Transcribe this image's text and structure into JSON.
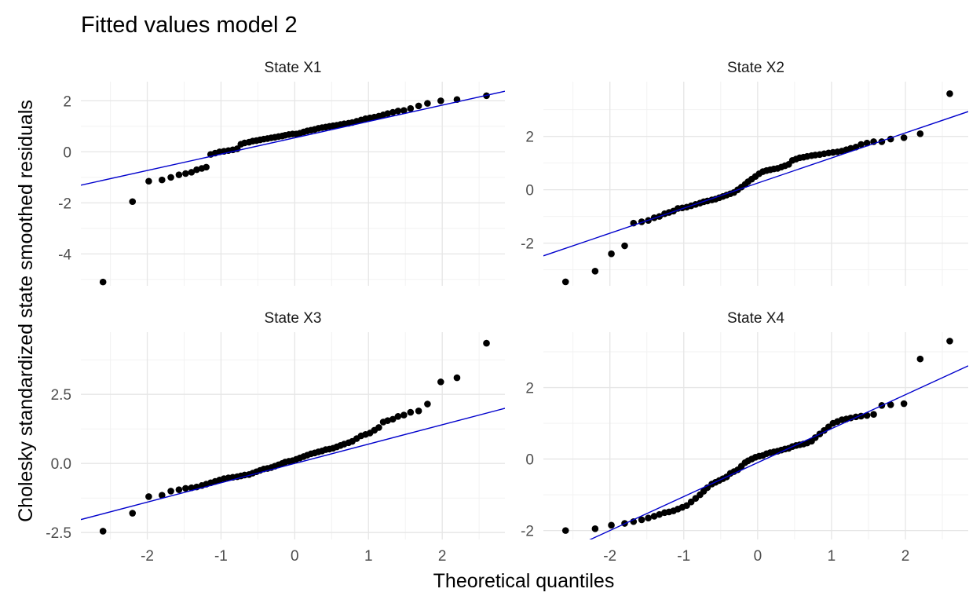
{
  "title": "Fitted values model 2",
  "xlabel": "Theoretical quantiles",
  "ylabel": "Cholesky standardized state smoothed residuals",
  "colors": {
    "points": "#000000",
    "line": "#0000cc",
    "grid_major": "#e6e6e6",
    "grid_minor": "#f2f2f2",
    "tick_text": "#4d4d4d",
    "text": "#000000"
  },
  "chart_data": [
    {
      "type": "scatter",
      "panel": "State X1",
      "grid": true,
      "xlim": [
        -2.9,
        2.85
      ],
      "ylim": [
        -5.25,
        2.75
      ],
      "x_ticks": [
        -2,
        -1,
        0,
        1,
        2
      ],
      "x_tick_labels": [
        "-2",
        "-1",
        "0",
        "1",
        "2"
      ],
      "y_ticks": [
        2,
        0,
        -2,
        -4
      ],
      "y_tick_labels": [
        "2",
        "0",
        "-2",
        "-4"
      ],
      "reference_line": {
        "slope": 0.64,
        "intercept": 0.55
      },
      "points": {
        "x": [
          -2.6,
          -2.2,
          -1.98,
          -1.8,
          -1.68,
          -1.57,
          -1.48,
          -1.4,
          -1.33,
          -1.26,
          -1.2,
          -1.14,
          -1.08,
          -1.02,
          -0.96,
          -0.9,
          -0.84,
          -0.78,
          -0.73,
          -0.68,
          -0.62,
          -0.57,
          -0.52,
          -0.47,
          -0.42,
          -0.37,
          -0.32,
          -0.27,
          -0.22,
          -0.17,
          -0.13,
          -0.08,
          -0.03,
          0.02,
          0.07,
          0.12,
          0.17,
          0.22,
          0.27,
          0.32,
          0.37,
          0.42,
          0.47,
          0.52,
          0.57,
          0.62,
          0.67,
          0.73,
          0.78,
          0.84,
          0.9,
          0.96,
          1.02,
          1.08,
          1.14,
          1.2,
          1.26,
          1.33,
          1.4,
          1.48,
          1.57,
          1.68,
          1.8,
          1.98,
          2.2,
          2.6
        ],
        "y": [
          -5.1,
          -1.95,
          -1.15,
          -1.1,
          -1.0,
          -0.9,
          -0.85,
          -0.8,
          -0.7,
          -0.65,
          -0.6,
          -0.1,
          -0.05,
          0.0,
          0.02,
          0.05,
          0.08,
          0.12,
          0.3,
          0.35,
          0.38,
          0.42,
          0.44,
          0.47,
          0.5,
          0.52,
          0.55,
          0.57,
          0.6,
          0.62,
          0.65,
          0.68,
          0.7,
          0.7,
          0.73,
          0.78,
          0.82,
          0.85,
          0.88,
          0.92,
          0.95,
          0.97,
          1.0,
          1.02,
          1.04,
          1.07,
          1.1,
          1.12,
          1.15,
          1.2,
          1.25,
          1.3,
          1.33,
          1.36,
          1.4,
          1.45,
          1.5,
          1.55,
          1.6,
          1.62,
          1.7,
          1.8,
          1.9,
          2.0,
          2.05,
          2.2
        ]
      }
    },
    {
      "type": "scatter",
      "panel": "State X2",
      "grid": true,
      "xlim": [
        -2.9,
        2.85
      ],
      "ylim": [
        -3.6,
        4.05
      ],
      "x_ticks": [
        -2,
        -1,
        0,
        1,
        2
      ],
      "x_tick_labels": [
        "-2",
        "-1",
        "0",
        "1",
        "2"
      ],
      "y_ticks": [
        2,
        0,
        -2
      ],
      "y_tick_labels": [
        "2",
        "0",
        "-2"
      ],
      "reference_line": {
        "slope": 0.94,
        "intercept": 0.25
      },
      "points": {
        "x": [
          -2.6,
          -2.2,
          -1.98,
          -1.8,
          -1.68,
          -1.57,
          -1.48,
          -1.4,
          -1.33,
          -1.26,
          -1.2,
          -1.14,
          -1.08,
          -1.02,
          -0.96,
          -0.9,
          -0.84,
          -0.78,
          -0.73,
          -0.68,
          -0.62,
          -0.57,
          -0.52,
          -0.47,
          -0.42,
          -0.37,
          -0.32,
          -0.27,
          -0.22,
          -0.17,
          -0.13,
          -0.08,
          -0.03,
          0.02,
          0.07,
          0.12,
          0.17,
          0.22,
          0.27,
          0.32,
          0.37,
          0.42,
          0.47,
          0.52,
          0.57,
          0.62,
          0.67,
          0.73,
          0.78,
          0.84,
          0.9,
          0.96,
          1.02,
          1.08,
          1.14,
          1.2,
          1.26,
          1.33,
          1.4,
          1.48,
          1.57,
          1.68,
          1.8,
          1.98,
          2.2,
          2.6
        ],
        "y": [
          -3.45,
          -3.05,
          -2.4,
          -2.1,
          -1.25,
          -1.2,
          -1.15,
          -1.05,
          -1.0,
          -0.9,
          -0.85,
          -0.8,
          -0.7,
          -0.68,
          -0.65,
          -0.6,
          -0.55,
          -0.5,
          -0.45,
          -0.42,
          -0.38,
          -0.35,
          -0.3,
          -0.25,
          -0.2,
          -0.15,
          -0.1,
          0.0,
          0.1,
          0.2,
          0.3,
          0.4,
          0.5,
          0.6,
          0.68,
          0.72,
          0.75,
          0.78,
          0.8,
          0.85,
          0.9,
          0.95,
          1.1,
          1.15,
          1.2,
          1.22,
          1.25,
          1.28,
          1.3,
          1.32,
          1.35,
          1.38,
          1.4,
          1.42,
          1.45,
          1.5,
          1.55,
          1.6,
          1.7,
          1.75,
          1.8,
          1.8,
          1.9,
          1.95,
          2.1,
          3.6
        ]
      }
    },
    {
      "type": "scatter",
      "panel": "State X3",
      "grid": true,
      "xlim": [
        -2.9,
        2.85
      ],
      "ylim": [
        -2.75,
        4.75
      ],
      "x_ticks": [
        -2,
        -1,
        0,
        1,
        2
      ],
      "x_tick_labels": [
        "-2",
        "-1",
        "0",
        "1",
        "2"
      ],
      "y_ticks": [
        2.5,
        0.0,
        -2.5
      ],
      "y_tick_labels": [
        "2.5",
        "0.0",
        "-2.5"
      ],
      "reference_line": {
        "slope": 0.7,
        "intercept": 0.0
      },
      "points": {
        "x": [
          -2.6,
          -2.2,
          -1.98,
          -1.8,
          -1.68,
          -1.57,
          -1.48,
          -1.4,
          -1.33,
          -1.26,
          -1.2,
          -1.14,
          -1.08,
          -1.02,
          -0.96,
          -0.9,
          -0.84,
          -0.78,
          -0.73,
          -0.68,
          -0.62,
          -0.57,
          -0.52,
          -0.47,
          -0.42,
          -0.37,
          -0.32,
          -0.27,
          -0.22,
          -0.17,
          -0.13,
          -0.08,
          -0.03,
          0.02,
          0.07,
          0.12,
          0.17,
          0.22,
          0.27,
          0.32,
          0.37,
          0.42,
          0.47,
          0.52,
          0.57,
          0.62,
          0.67,
          0.73,
          0.78,
          0.84,
          0.9,
          0.96,
          1.02,
          1.08,
          1.14,
          1.2,
          1.26,
          1.33,
          1.4,
          1.48,
          1.57,
          1.68,
          1.8,
          1.98,
          2.2,
          2.6
        ],
        "y": [
          -2.45,
          -1.8,
          -1.2,
          -1.15,
          -1.0,
          -0.95,
          -0.9,
          -0.88,
          -0.85,
          -0.8,
          -0.75,
          -0.7,
          -0.65,
          -0.6,
          -0.55,
          -0.52,
          -0.5,
          -0.48,
          -0.45,
          -0.42,
          -0.4,
          -0.35,
          -0.3,
          -0.25,
          -0.2,
          -0.18,
          -0.15,
          -0.1,
          -0.05,
          0.0,
          0.05,
          0.08,
          0.1,
          0.15,
          0.2,
          0.25,
          0.3,
          0.35,
          0.38,
          0.42,
          0.45,
          0.5,
          0.52,
          0.55,
          0.6,
          0.65,
          0.7,
          0.75,
          0.8,
          0.9,
          1.0,
          1.05,
          1.1,
          1.2,
          1.3,
          1.5,
          1.55,
          1.6,
          1.7,
          1.75,
          1.85,
          1.9,
          2.15,
          2.95,
          3.1,
          4.35
        ]
      }
    },
    {
      "type": "scatter",
      "panel": "State X4",
      "grid": true,
      "xlim": [
        -2.9,
        2.85
      ],
      "ylim": [
        -2.25,
        3.55
      ],
      "x_ticks": [
        -2,
        -1,
        0,
        1,
        2
      ],
      "x_tick_labels": [
        "-2",
        "-1",
        "0",
        "1",
        "2"
      ],
      "y_ticks": [
        2,
        0,
        -2
      ],
      "y_tick_labels": [
        "2",
        "0",
        "-2"
      ],
      "reference_line": {
        "slope": 0.95,
        "intercept": -0.1
      },
      "points": {
        "x": [
          -2.6,
          -2.2,
          -1.98,
          -1.8,
          -1.68,
          -1.57,
          -1.48,
          -1.4,
          -1.33,
          -1.26,
          -1.2,
          -1.14,
          -1.08,
          -1.02,
          -0.96,
          -0.9,
          -0.84,
          -0.78,
          -0.73,
          -0.68,
          -0.62,
          -0.57,
          -0.52,
          -0.47,
          -0.42,
          -0.37,
          -0.32,
          -0.27,
          -0.22,
          -0.17,
          -0.13,
          -0.08,
          -0.03,
          0.02,
          0.07,
          0.12,
          0.17,
          0.22,
          0.27,
          0.32,
          0.37,
          0.42,
          0.47,
          0.52,
          0.57,
          0.62,
          0.67,
          0.73,
          0.78,
          0.84,
          0.9,
          0.96,
          1.02,
          1.08,
          1.14,
          1.2,
          1.26,
          1.33,
          1.4,
          1.48,
          1.57,
          1.68,
          1.8,
          1.98,
          2.2,
          2.6
        ],
        "y": [
          -2.0,
          -1.95,
          -1.85,
          -1.8,
          -1.75,
          -1.7,
          -1.65,
          -1.6,
          -1.55,
          -1.5,
          -1.48,
          -1.45,
          -1.4,
          -1.35,
          -1.3,
          -1.2,
          -1.1,
          -1.0,
          -0.9,
          -0.8,
          -0.7,
          -0.65,
          -0.6,
          -0.55,
          -0.5,
          -0.4,
          -0.35,
          -0.3,
          -0.2,
          -0.1,
          -0.05,
          0.0,
          0.05,
          0.08,
          0.1,
          0.15,
          0.18,
          0.2,
          0.22,
          0.25,
          0.28,
          0.3,
          0.35,
          0.38,
          0.4,
          0.42,
          0.45,
          0.5,
          0.6,
          0.7,
          0.8,
          0.9,
          1.0,
          1.05,
          1.1,
          1.12,
          1.15,
          1.18,
          1.2,
          1.22,
          1.25,
          1.5,
          1.52,
          1.55,
          2.8,
          3.3
        ]
      }
    }
  ]
}
